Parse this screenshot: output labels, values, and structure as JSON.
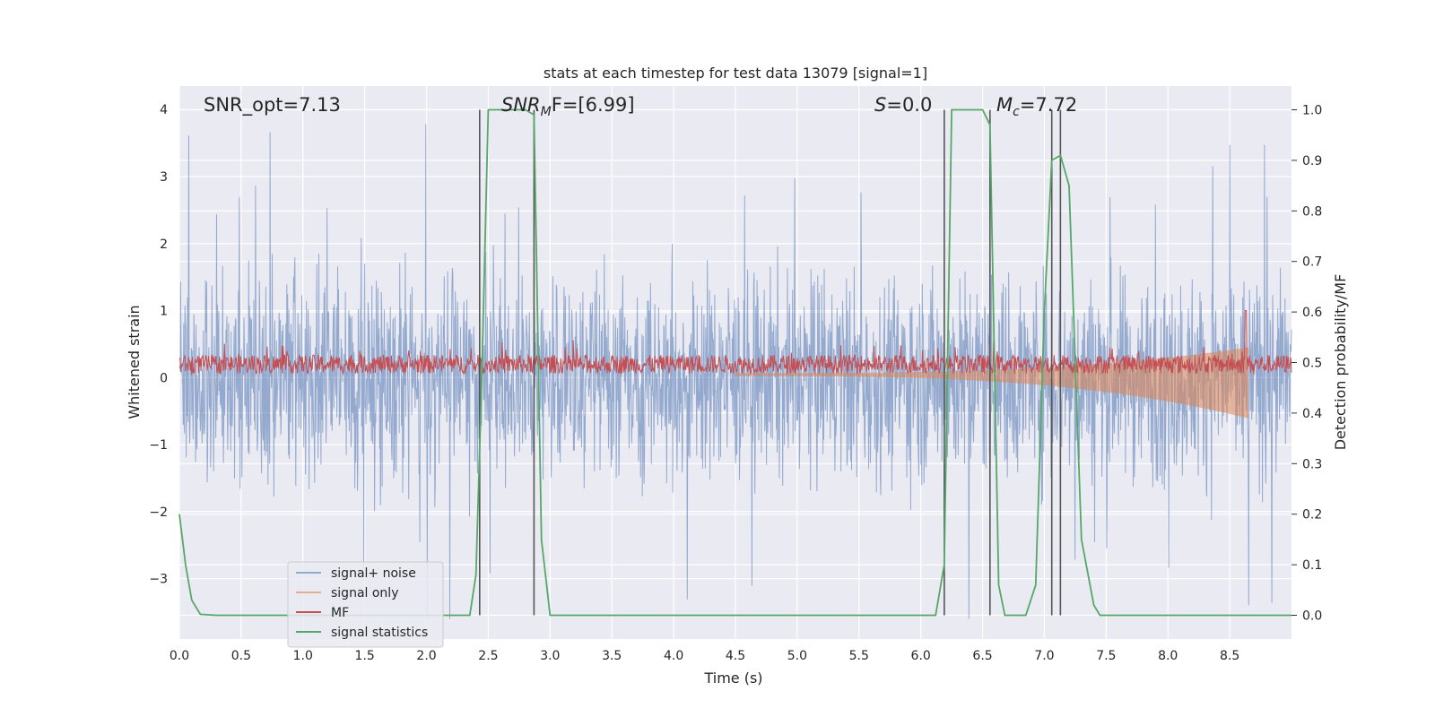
{
  "chart_data": {
    "type": "line",
    "title": "stats at each timestep for test data 13079 [signal=1]",
    "xlabel": "Time (s)",
    "ylabel_left": "Whitened strain",
    "ylabel_right": "Detection probability/MF",
    "xlim": [
      0.0,
      9.0
    ],
    "ylim_left": [
      -3.9,
      4.35
    ],
    "ylim_right": [
      -0.047,
      1.047
    ],
    "x_ticks": [
      "0.0",
      "0.5",
      "1.0",
      "1.5",
      "2.0",
      "2.5",
      "3.0",
      "3.5",
      "4.0",
      "4.5",
      "5.0",
      "5.5",
      "6.0",
      "6.5",
      "7.0",
      "7.5",
      "8.0",
      "8.5"
    ],
    "y_ticks_left": [
      "−3",
      "−2",
      "−1",
      "0",
      "1",
      "2",
      "3",
      "4"
    ],
    "y_ticks_right": [
      "0.0",
      "0.1",
      "0.2",
      "0.3",
      "0.4",
      "0.5",
      "0.6",
      "0.7",
      "0.8",
      "0.9",
      "1.0"
    ],
    "grid": true,
    "legend_position": "lower-left",
    "annotations": {
      "snr_opt": "SNR_opt=7.13",
      "snr_mf_main": "SNR",
      "snr_mf_sub": "M",
      "snr_mf_rest": "F=[6.99]",
      "s_main": "S",
      "s_rest": "=0.0",
      "mc_main": "M",
      "mc_sub": "c",
      "mc_rest": "=7.72"
    },
    "vertical_lines_x": [
      2.43,
      2.87,
      6.19,
      6.56,
      7.06,
      7.13
    ],
    "series": [
      {
        "name": "signal+ noise",
        "color": "#4c72b0",
        "axis": "left",
        "description_values": {
          "envelope_positive": 4.0,
          "envelope_negative": -3.6,
          "typical_amplitude": 1.2
        }
      },
      {
        "name": "signal only",
        "color": "#dd8452",
        "axis": "left",
        "chirp": {
          "start_x": 4.5,
          "end_x": 8.65,
          "peak_amplitude": 0.7
        }
      },
      {
        "name": "MF",
        "color": "#c44e52",
        "axis": "left",
        "baseline": 0.2,
        "spike": {
          "x": 8.63,
          "value": 1.0
        }
      },
      {
        "name": "signal statistics",
        "color": "#55a868",
        "axis": "right",
        "x": [
          0.0,
          0.05,
          0.1,
          0.17,
          0.3,
          0.5,
          1.0,
          1.5,
          2.0,
          2.35,
          2.4,
          2.45,
          2.5,
          2.55,
          2.6,
          2.7,
          2.8,
          2.87,
          2.93,
          3.0,
          3.05,
          3.5,
          4.0,
          4.5,
          5.0,
          5.5,
          6.0,
          6.12,
          6.19,
          6.25,
          6.3,
          6.4,
          6.5,
          6.56,
          6.63,
          6.68,
          6.75,
          6.85,
          6.93,
          7.0,
          7.06,
          7.13,
          7.2,
          7.3,
          7.4,
          7.45,
          7.5,
          8.0,
          8.5,
          9.0
        ],
        "y": [
          0.2,
          0.1,
          0.03,
          0.002,
          0.0,
          0.0,
          0.0,
          0.0,
          0.0,
          0.0,
          0.08,
          0.5,
          1.0,
          1.0,
          1.0,
          1.0,
          1.0,
          0.99,
          0.15,
          0.0,
          0.0,
          0.0,
          0.0,
          0.0,
          0.0,
          0.0,
          0.0,
          0.0,
          0.1,
          1.0,
          1.0,
          1.0,
          1.0,
          0.97,
          0.06,
          0.0,
          0.0,
          0.0,
          0.06,
          0.6,
          0.9,
          0.91,
          0.85,
          0.15,
          0.02,
          0.0,
          0.0,
          0.0,
          0.0,
          0.0
        ]
      }
    ]
  }
}
